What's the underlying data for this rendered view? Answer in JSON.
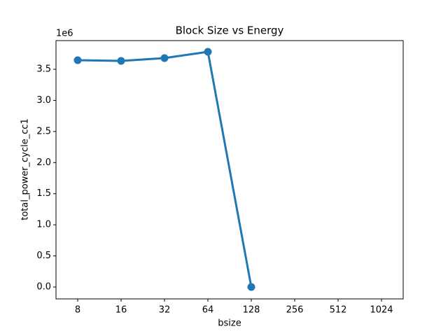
{
  "chart_data": {
    "type": "line",
    "title": "Block Size vs Energy",
    "x_label": "bsize",
    "y_label": "total_power_cycle_cc1",
    "y_offset_label": "1e6",
    "categories": [
      "8",
      "16",
      "32",
      "64",
      "128",
      "256",
      "512",
      "1024"
    ],
    "series": [
      {
        "name": "total_power_cycle_cc1",
        "color": "#1f77b4",
        "values": [
          3646000,
          3635000,
          3680000,
          3781000,
          0,
          null,
          null,
          null
        ]
      }
    ],
    "ylim": [
      -191000,
      3961000
    ],
    "yticks": [
      {
        "value": 0,
        "label": "0.0"
      },
      {
        "value": 500000,
        "label": "0.5"
      },
      {
        "value": 1000000,
        "label": "1.0"
      },
      {
        "value": 1500000,
        "label": "1.5"
      },
      {
        "value": 2000000,
        "label": "2.0"
      },
      {
        "value": 2500000,
        "label": "2.5"
      },
      {
        "value": 3000000,
        "label": "3.0"
      },
      {
        "value": 3500000,
        "label": "3.5"
      }
    ],
    "grid": false
  }
}
